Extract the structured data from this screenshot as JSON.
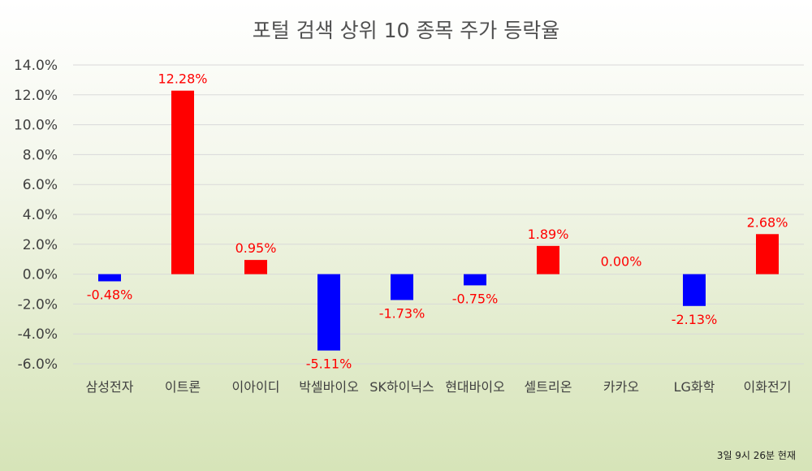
{
  "chart_data": {
    "type": "bar",
    "title": "포털 검색 상위 10 종목 주가 등락율",
    "xlabel": "",
    "ylabel": "",
    "categories": [
      "삼성전자",
      "이트론",
      "이아이디",
      "박셀바이오",
      "SK하이닉스",
      "현대바이오",
      "셀트리온",
      "카카오",
      "LG화학",
      "이화전기"
    ],
    "values": [
      -0.48,
      12.28,
      0.95,
      -5.11,
      -1.73,
      -0.75,
      1.89,
      0.0,
      -2.13,
      2.68
    ],
    "data_labels": [
      "-0.48%",
      "12.28%",
      "0.95%",
      "-5.11%",
      "-1.73%",
      "-0.75%",
      "1.89%",
      "0.00%",
      "-2.13%",
      "2.68%"
    ],
    "yticks": [
      14,
      12,
      10,
      8,
      6,
      4,
      2,
      0,
      -2,
      -4,
      -6
    ],
    "ytick_labels": [
      "14.0%",
      "12.0%",
      "10.0%",
      "8.0%",
      "6.0%",
      "4.0%",
      "2.0%",
      "0.0%",
      "-2.0%",
      "-4.0%",
      "-6.0%"
    ],
    "ylim": [
      -6,
      14
    ],
    "grid": true,
    "colors": {
      "positive": "#ff0000",
      "negative": "#0000ff",
      "label": "#ff0000",
      "grid": "#d9d9d9"
    },
    "footnote": "3일 9시 26분 현재"
  }
}
